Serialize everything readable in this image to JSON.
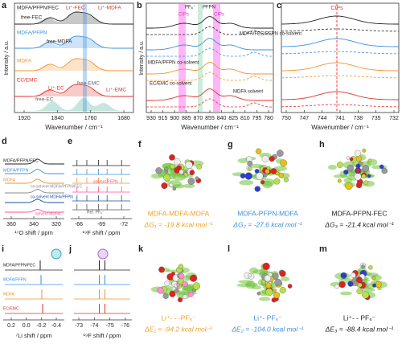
{
  "panels": {
    "a": {
      "label": "a",
      "x_label": "Wavenumber / cm⁻¹",
      "y_label": "Intensity / a.u.",
      "xticks": [
        "1920",
        "1840",
        "1760",
        "1680"
      ],
      "annotations": [
        "MDFA/PFPN/FEC",
        "Li⁺-FEC",
        "Li⁺-MDFA",
        "free-FEC",
        "MDFA/PFPN",
        "free-MDFA",
        "MDFA",
        "EC/EMC",
        "Li⁺-EC",
        "free-EMC",
        "Li⁺-EMC",
        "free-EC"
      ]
    },
    "b": {
      "label": "b",
      "x_label": "Wavenumber / cm⁻¹",
      "y_label": "Intensity / a.u.",
      "xticks": [
        "930",
        "915",
        "900",
        "885",
        "870",
        "855",
        "840",
        "825",
        "810",
        "795",
        "780"
      ],
      "annotations": [
        "PF₆⁻",
        "PFPN",
        "CIPs",
        "CIPs",
        "MDFA/FEC/PFPN co-solvent",
        "MDFA/PFPN co-solvent",
        "MDFA solvent",
        "EC/EMC co-solvent"
      ]
    },
    "c": {
      "label": "c",
      "x_label": "Wavenumber / cm⁻¹",
      "xticks": [
        "750",
        "747",
        "744",
        "741",
        "738",
        "735",
        "732"
      ],
      "annotations": [
        "CIPs"
      ]
    },
    "d": {
      "label": "d",
      "x_label": "¹⁷O shift / ppm",
      "xticks": [
        "360",
        "340",
        "320"
      ],
      "annotations": [
        "MDFA/PFPN/FEC",
        "MDFA/PFPN",
        "MDFA",
        "co-solvent MDFA/PFPN/FEC",
        "co-solvent MDFA/PFPN",
        "solvent MDFA"
      ]
    },
    "e": {
      "label": "e",
      "x_label": "¹⁹F shift / ppm",
      "xticks": [
        "-66",
        "-69",
        "-72"
      ],
      "annotations": [
        "solvent PFPN",
        "Ref. PF₆⁻"
      ]
    },
    "f": {
      "label": "f",
      "title": "MDFA-MDFA-MDFA",
      "energy": "ΔG₁ = -19.8 kcal mol⁻¹"
    },
    "g": {
      "label": "g",
      "title": "MDFA-PFPN-MDFA",
      "energy": "ΔG₂ = -27.6 kcal mol⁻¹"
    },
    "h": {
      "label": "h",
      "title": "MDFA-PFPN-FEC",
      "energy": "ΔG₃ = -21.4 kcal mol⁻¹"
    },
    "i": {
      "label": "i",
      "x_label": "⁷Li shift / ppm",
      "xticks": [
        "0.2",
        "0.0",
        "-0.2",
        "-0.4"
      ],
      "annotations": [
        "MDFA/PFPN/FEC",
        "MDFA/PFPN",
        "MDFA",
        "EC/EMC"
      ]
    },
    "j": {
      "label": "j",
      "x_label": "¹⁹F shift / ppm",
      "xticks": [
        "-73",
        "-74",
        "-75",
        "-76"
      ]
    },
    "k": {
      "label": "k",
      "title": "Li⁺- - -PF₆⁻",
      "energy": "ΔE₁ = -94.2 kcal mol⁻¹"
    },
    "l": {
      "label": "l",
      "title": "Li⁺- PF₆⁻",
      "energy": "ΔE₂ = -104.0 kcal mol⁻¹"
    },
    "m": {
      "label": "m",
      "title": "Li⁺- - PF₆⁻",
      "energy": "ΔE₃ = -88.4 kcal mol⁻¹"
    }
  }
}
